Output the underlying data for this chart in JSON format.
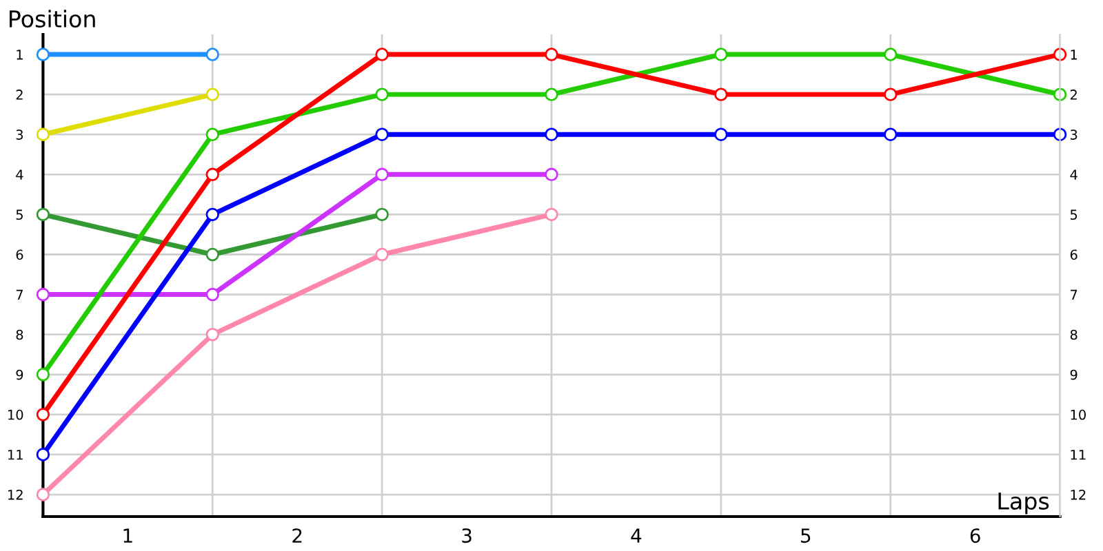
{
  "chart_data": {
    "type": "line",
    "xlabel": "Laps",
    "ylabel": "Position",
    "x": [
      0,
      1,
      2,
      3,
      4,
      5,
      6
    ],
    "series": [
      {
        "color": "#1e90ff",
        "values": [
          1,
          1,
          null,
          null,
          null,
          null,
          null
        ]
      },
      {
        "color": "#dddd00",
        "values": [
          3,
          2,
          null,
          null,
          null,
          null,
          null
        ]
      },
      {
        "color": "#339933",
        "values": [
          5,
          6,
          5,
          null,
          null,
          null,
          null
        ]
      },
      {
        "color": "#cc33ff",
        "values": [
          7,
          7,
          4,
          4,
          null,
          null,
          null
        ]
      },
      {
        "color": "#ff88aa",
        "values": [
          12,
          8,
          6,
          5,
          null,
          null,
          null
        ]
      },
      {
        "color": "#0000ff",
        "values": [
          11,
          5,
          3,
          3,
          3,
          3,
          3
        ]
      },
      {
        "color": "#22cc00",
        "values": [
          9,
          3,
          2,
          2,
          1,
          1,
          2
        ]
      },
      {
        "color": "#ff0000",
        "values": [
          10,
          4,
          1,
          1,
          2,
          2,
          1
        ]
      }
    ],
    "xlim": [
      0,
      6
    ],
    "xticks": [
      {
        "value": 0,
        "label": null
      },
      {
        "value": 0.5,
        "label": "1"
      },
      {
        "value": 1,
        "label": null
      },
      {
        "value": 1.5,
        "label": "2"
      },
      {
        "value": 2,
        "label": null
      },
      {
        "value": 2.5,
        "label": "3"
      },
      {
        "value": 3,
        "label": null
      },
      {
        "value": 3.5,
        "label": "4"
      },
      {
        "value": 4,
        "label": null
      },
      {
        "value": 4.5,
        "label": "5"
      },
      {
        "value": 5,
        "label": null
      },
      {
        "value": 5.5,
        "label": "6"
      },
      {
        "value": 6,
        "label": null
      }
    ],
    "ylim": [
      12.55,
      0.5
    ],
    "yticks": [
      1,
      2,
      3,
      4,
      5,
      6,
      7,
      8,
      9,
      10,
      11,
      12
    ],
    "y2lim": [
      12.55,
      0.5
    ],
    "y2ticks": [
      1,
      2,
      3,
      4,
      5,
      6,
      7,
      8,
      9,
      10,
      11,
      12
    ],
    "grid": true,
    "legend": false,
    "marker": "circle",
    "line_style": "solid"
  }
}
